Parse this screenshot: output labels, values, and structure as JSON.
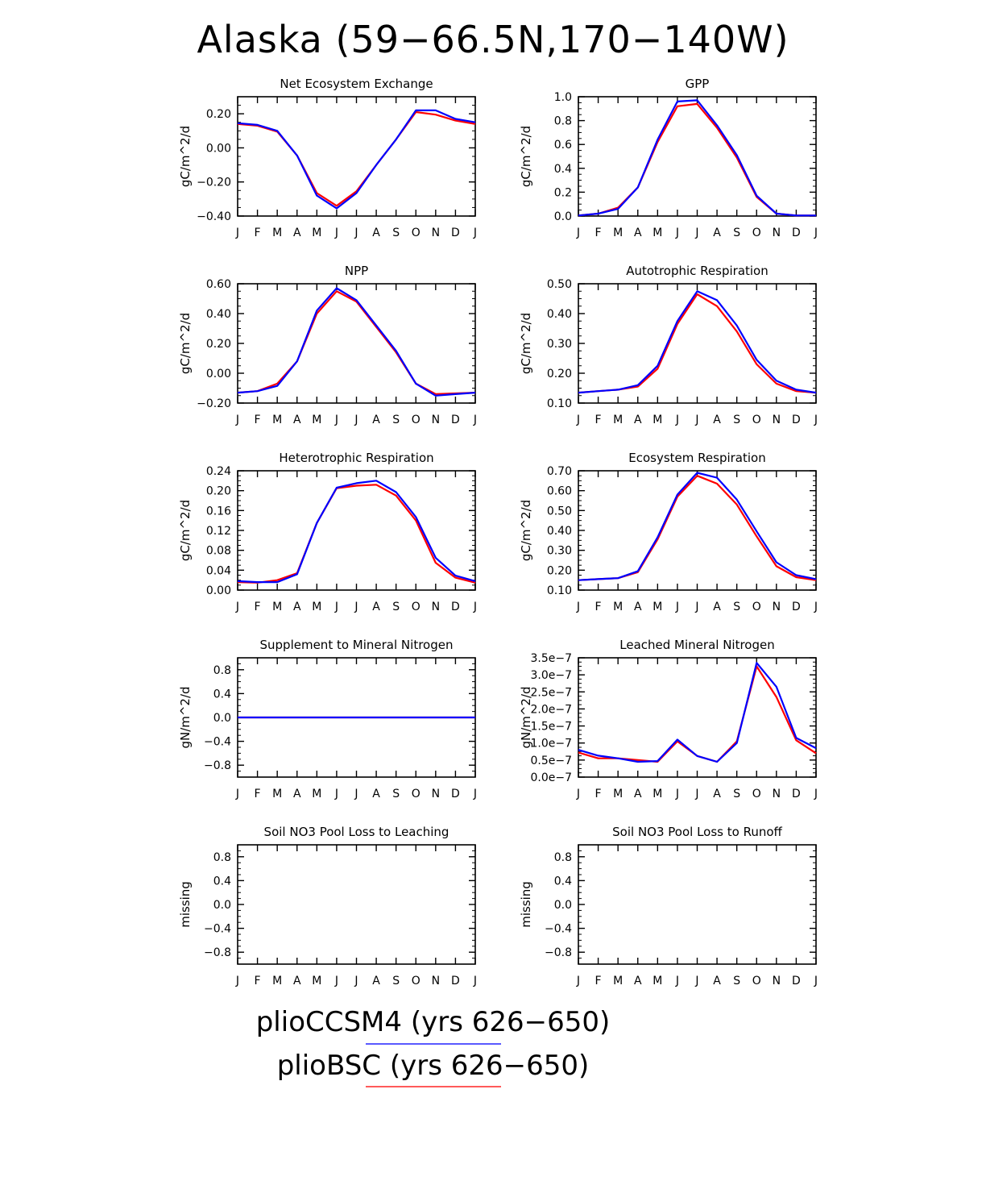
{
  "figure": {
    "title": "Alaska (59−66.5N,170−140W)",
    "months": [
      "J",
      "F",
      "M",
      "A",
      "M",
      "J",
      "J",
      "A",
      "S",
      "O",
      "N",
      "D",
      "J"
    ],
    "colors": {
      "plioCCSM4": "#0000ff",
      "plioBSC": "#ff0000"
    }
  },
  "legend": [
    {
      "label": "plioCCSM4 (yrs 626−650)",
      "color": "#0000ff"
    },
    {
      "label": "plioBSC (yrs 626−650)",
      "color": "#ff0000"
    }
  ],
  "chart_data": [
    {
      "type": "line",
      "title": "Net Ecosystem Exchange",
      "ylabel": "gC/m^2/d",
      "ylim": [
        -0.4,
        0.3
      ],
      "yticks": [
        -0.4,
        -0.2,
        0.0,
        0.2
      ],
      "yticklabels": [
        "−0.40",
        "−0.20",
        "0.00",
        "0.20"
      ],
      "x": [
        "J",
        "F",
        "M",
        "A",
        "M",
        "J",
        "J",
        "A",
        "S",
        "O",
        "N",
        "D",
        "J"
      ],
      "series": [
        {
          "name": "plioBSC",
          "values": [
            0.14,
            0.13,
            0.095,
            -0.045,
            -0.265,
            -0.34,
            -0.255,
            -0.1,
            0.05,
            0.21,
            0.195,
            0.16,
            0.14
          ]
        },
        {
          "name": "plioCCSM4",
          "values": [
            0.145,
            0.135,
            0.1,
            -0.045,
            -0.28,
            -0.355,
            -0.265,
            -0.1,
            0.05,
            0.22,
            0.22,
            0.17,
            0.15
          ]
        }
      ]
    },
    {
      "type": "line",
      "title": "GPP",
      "ylabel": "gC/m^2/d",
      "ylim": [
        0.0,
        1.0
      ],
      "yticks": [
        0.0,
        0.2,
        0.4,
        0.6,
        0.8,
        1.0
      ],
      "yticklabels": [
        "0.0",
        "0.2",
        "0.4",
        "0.6",
        "0.8",
        "1.0"
      ],
      "x": [
        "J",
        "F",
        "M",
        "A",
        "M",
        "J",
        "J",
        "A",
        "S",
        "O",
        "N",
        "D",
        "J"
      ],
      "series": [
        {
          "name": "plioBSC",
          "values": [
            0.005,
            0.02,
            0.07,
            0.24,
            0.62,
            0.92,
            0.94,
            0.74,
            0.49,
            0.16,
            0.02,
            0.005,
            0.005
          ]
        },
        {
          "name": "plioCCSM4",
          "values": [
            0.005,
            0.02,
            0.06,
            0.24,
            0.64,
            0.96,
            0.97,
            0.76,
            0.51,
            0.17,
            0.02,
            0.005,
            0.005
          ]
        }
      ]
    },
    {
      "type": "line",
      "title": "NPP",
      "ylabel": "gC/m^2/d",
      "ylim": [
        -0.2,
        0.6
      ],
      "yticks": [
        -0.2,
        0.0,
        0.2,
        0.4,
        0.6
      ],
      "yticklabels": [
        "−0.20",
        "0.00",
        "0.20",
        "0.40",
        "0.60"
      ],
      "x": [
        "J",
        "F",
        "M",
        "A",
        "M",
        "J",
        "J",
        "A",
        "S",
        "O",
        "N",
        "D",
        "J"
      ],
      "series": [
        {
          "name": "plioBSC",
          "values": [
            -0.13,
            -0.12,
            -0.07,
            0.08,
            0.4,
            0.55,
            0.48,
            0.31,
            0.14,
            -0.07,
            -0.14,
            -0.135,
            -0.13
          ]
        },
        {
          "name": "plioCCSM4",
          "values": [
            -0.13,
            -0.12,
            -0.085,
            0.08,
            0.42,
            0.57,
            0.49,
            0.32,
            0.15,
            -0.07,
            -0.15,
            -0.14,
            -0.13
          ]
        }
      ]
    },
    {
      "type": "line",
      "title": "Autotrophic Respiration",
      "ylabel": "gC/m^2/d",
      "ylim": [
        0.1,
        0.5
      ],
      "yticks": [
        0.1,
        0.2,
        0.3,
        0.4,
        0.5
      ],
      "yticklabels": [
        "0.10",
        "0.20",
        "0.30",
        "0.40",
        "0.50"
      ],
      "x": [
        "J",
        "F",
        "M",
        "A",
        "M",
        "J",
        "J",
        "A",
        "S",
        "O",
        "N",
        "D",
        "J"
      ],
      "series": [
        {
          "name": "plioBSC",
          "values": [
            0.135,
            0.14,
            0.145,
            0.155,
            0.215,
            0.365,
            0.465,
            0.425,
            0.34,
            0.23,
            0.165,
            0.14,
            0.135
          ]
        },
        {
          "name": "plioCCSM4",
          "values": [
            0.135,
            0.14,
            0.145,
            0.16,
            0.225,
            0.375,
            0.475,
            0.445,
            0.36,
            0.245,
            0.175,
            0.145,
            0.135
          ]
        }
      ]
    },
    {
      "type": "line",
      "title": "Heterotrophic Respiration",
      "ylabel": "gC/m^2/d",
      "ylim": [
        0.0,
        0.24
      ],
      "yticks": [
        0.0,
        0.04,
        0.08,
        0.12,
        0.16,
        0.2,
        0.24
      ],
      "yticklabels": [
        "0.00",
        "0.04",
        "0.08",
        "0.12",
        "0.16",
        "0.20",
        "0.24"
      ],
      "x": [
        "J",
        "F",
        "M",
        "A",
        "M",
        "J",
        "J",
        "A",
        "S",
        "O",
        "N",
        "D",
        "J"
      ],
      "series": [
        {
          "name": "plioBSC",
          "values": [
            0.016,
            0.015,
            0.02,
            0.034,
            0.135,
            0.205,
            0.21,
            0.212,
            0.19,
            0.14,
            0.055,
            0.025,
            0.015
          ]
        },
        {
          "name": "plioCCSM4",
          "values": [
            0.018,
            0.016,
            0.016,
            0.032,
            0.135,
            0.206,
            0.215,
            0.22,
            0.197,
            0.147,
            0.065,
            0.029,
            0.018
          ]
        }
      ]
    },
    {
      "type": "line",
      "title": "Ecosystem Respiration",
      "ylabel": "gC/m^2/d",
      "ylim": [
        0.1,
        0.7
      ],
      "yticks": [
        0.1,
        0.2,
        0.3,
        0.4,
        0.5,
        0.6,
        0.7
      ],
      "yticklabels": [
        "0.10",
        "0.20",
        "0.30",
        "0.40",
        "0.50",
        "0.60",
        "0.70"
      ],
      "x": [
        "J",
        "F",
        "M",
        "A",
        "M",
        "J",
        "J",
        "A",
        "S",
        "O",
        "N",
        "D",
        "J"
      ],
      "series": [
        {
          "name": "plioBSC",
          "values": [
            0.15,
            0.155,
            0.16,
            0.19,
            0.355,
            0.57,
            0.675,
            0.635,
            0.53,
            0.37,
            0.22,
            0.165,
            0.15
          ]
        },
        {
          "name": "plioCCSM4",
          "values": [
            0.15,
            0.155,
            0.16,
            0.195,
            0.365,
            0.58,
            0.69,
            0.665,
            0.555,
            0.395,
            0.24,
            0.175,
            0.155
          ]
        }
      ]
    },
    {
      "type": "line",
      "title": "Supplement to Mineral Nitrogen",
      "ylabel": "gN/m^2/d",
      "ylim": [
        -1.0,
        1.0
      ],
      "yticks": [
        -0.8,
        -0.4,
        0.0,
        0.4,
        0.8
      ],
      "yticklabels": [
        "−0.8",
        "−0.4",
        "0.0",
        "0.4",
        "0.8"
      ],
      "x": [
        "J",
        "F",
        "M",
        "A",
        "M",
        "J",
        "J",
        "A",
        "S",
        "O",
        "N",
        "D",
        "J"
      ],
      "series": [
        {
          "name": "plioBSC",
          "values": [
            0,
            0,
            0,
            0,
            0,
            0,
            0,
            0,
            0,
            0,
            0,
            0,
            0
          ]
        },
        {
          "name": "plioCCSM4",
          "values": [
            0,
            0,
            0,
            0,
            0,
            0,
            0,
            0,
            0,
            0,
            0,
            0,
            0
          ]
        }
      ]
    },
    {
      "type": "line",
      "title": "Leached Mineral Nitrogen",
      "ylabel": "gN/m^2/d",
      "ylim": [
        0.0,
        3.5e-07
      ],
      "yticks": [
        0.0,
        5e-08,
        1e-07,
        1.5e-07,
        2e-07,
        2.5e-07,
        3e-07,
        3.5e-07
      ],
      "yticklabels": [
        "0.0e−7",
        "0.5e−7",
        "1.0e−7",
        "1.5e−7",
        "2.0e−7",
        "2.5e−7",
        "3.0e−7",
        "3.5e−7"
      ],
      "x": [
        "J",
        "F",
        "M",
        "A",
        "M",
        "J",
        "J",
        "A",
        "S",
        "O",
        "N",
        "D",
        "J"
      ],
      "series": [
        {
          "name": "plioBSC",
          "values": [
            7.2e-08,
            5.5e-08,
            5.5e-08,
            5e-08,
            4.5e-08,
            1.05e-07,
            6.2e-08,
            4.5e-08,
            1.05e-07,
            3.25e-07,
            2.35e-07,
            1.08e-07,
            7e-08
          ]
        },
        {
          "name": "plioCCSM4",
          "values": [
            8e-08,
            6.3e-08,
            5.5e-08,
            4.5e-08,
            4.7e-08,
            1.1e-07,
            6.2e-08,
            4.5e-08,
            1e-07,
            3.35e-07,
            2.65e-07,
            1.15e-07,
            8.5e-08
          ]
        }
      ]
    },
    {
      "type": "line",
      "title": "Soil NO3 Pool Loss to Leaching",
      "ylabel": "missing",
      "ylim": [
        -1.0,
        1.0
      ],
      "yticks": [
        -0.8,
        -0.4,
        0.0,
        0.4,
        0.8
      ],
      "yticklabels": [
        "−0.8",
        "−0.4",
        "0.0",
        "0.4",
        "0.8"
      ],
      "x": [
        "J",
        "F",
        "M",
        "A",
        "M",
        "J",
        "J",
        "A",
        "S",
        "O",
        "N",
        "D",
        "J"
      ],
      "series": []
    },
    {
      "type": "line",
      "title": "Soil NO3 Pool Loss to Runoff",
      "ylabel": "missing",
      "ylim": [
        -1.0,
        1.0
      ],
      "yticks": [
        -0.8,
        -0.4,
        0.0,
        0.4,
        0.8
      ],
      "yticklabels": [
        "−0.8",
        "−0.4",
        "0.0",
        "0.4",
        "0.8"
      ],
      "x": [
        "J",
        "F",
        "M",
        "A",
        "M",
        "J",
        "J",
        "A",
        "S",
        "O",
        "N",
        "D",
        "J"
      ],
      "series": []
    }
  ]
}
